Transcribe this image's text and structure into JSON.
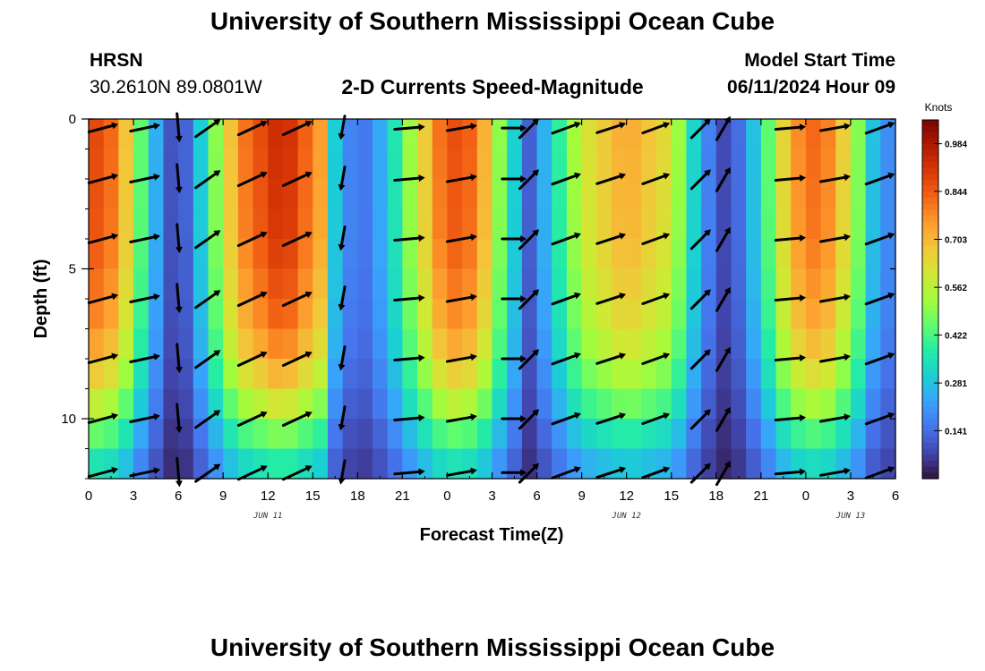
{
  "page": {
    "title_top": "University of Southern Mississippi Ocean Cube",
    "title_bottom": "University of Southern Mississippi Ocean Cube",
    "station": "HRSN",
    "coords": "30.2610N  89.0801W",
    "subtitle": "2-D Currents Speed-Magnitude",
    "model_start_label": "Model Start Time",
    "model_start_value": "06/11/2024 Hour 09"
  },
  "colors": {
    "arrow": "#000000",
    "frame": "#000000",
    "scale": [
      "#30123b",
      "#4145ab",
      "#4675ed",
      "#39a2fc",
      "#1bcfd4",
      "#24eca6",
      "#61fc6c",
      "#a4fc3b",
      "#d1e834",
      "#f3c63a",
      "#fe9b2d",
      "#f36315",
      "#d93806",
      "#b11901",
      "#7a0402"
    ]
  },
  "chart_data": {
    "type": "heatmap",
    "title": "2-D Currents Speed-Magnitude",
    "xlabel": "Forecast Time(Z)",
    "ylabel": "Depth (ft)",
    "colorbar_label": "Knots",
    "colorbar_ticks": [
      "0.141",
      "0.281",
      "0.422",
      "0.562",
      "0.703",
      "0.844",
      "0.984"
    ],
    "colorbar_range": [
      0.0,
      1.054
    ],
    "x_range_hours": [
      0,
      54
    ],
    "y_range_ft": [
      0,
      12
    ],
    "x_tick_hours": [
      0,
      3,
      6,
      9,
      12,
      15,
      18,
      21,
      24,
      27,
      30,
      33,
      36,
      39,
      42,
      45,
      48,
      51,
      54
    ],
    "x_tick_labels": [
      "0",
      "3",
      "6",
      "9",
      "12",
      "15",
      "18",
      "21",
      "0",
      "3",
      "6",
      "9",
      "12",
      "15",
      "18",
      "21",
      "0",
      "3",
      "6"
    ],
    "y_tick_values": [
      0,
      5,
      10
    ],
    "y_tick_labels": [
      "0",
      "5",
      "10"
    ],
    "date_labels": [
      {
        "text": "JUN 11",
        "hour": 12
      },
      {
        "text": "JUN 12",
        "hour": 36
      },
      {
        "text": "JUN 13",
        "hour": 51
      }
    ],
    "surface_speed_profile_knots": [
      {
        "hour": 0,
        "speed": 0.9
      },
      {
        "hour": 2,
        "speed": 0.8
      },
      {
        "hour": 3.5,
        "speed": 0.45
      },
      {
        "hour": 5,
        "speed": 0.15
      },
      {
        "hour": 6,
        "speed": 0.05
      },
      {
        "hour": 7,
        "speed": 0.2
      },
      {
        "hour": 8.5,
        "speed": 0.5
      },
      {
        "hour": 10,
        "speed": 0.78
      },
      {
        "hour": 13,
        "speed": 0.96
      },
      {
        "hour": 15.5,
        "speed": 0.75
      },
      {
        "hour": 16.5,
        "speed": 0.3
      },
      {
        "hour": 18,
        "speed": 0.12
      },
      {
        "hour": 20,
        "speed": 0.28
      },
      {
        "hour": 22,
        "speed": 0.6
      },
      {
        "hour": 24,
        "speed": 0.88
      },
      {
        "hour": 26,
        "speed": 0.82
      },
      {
        "hour": 28,
        "speed": 0.4
      },
      {
        "hour": 29.5,
        "speed": 0.12
      },
      {
        "hour": 31,
        "speed": 0.32
      },
      {
        "hour": 33,
        "speed": 0.6
      },
      {
        "hour": 36,
        "speed": 0.74
      },
      {
        "hour": 39,
        "speed": 0.62
      },
      {
        "hour": 40.5,
        "speed": 0.32
      },
      {
        "hour": 42,
        "speed": 0.1
      },
      {
        "hour": 43,
        "speed": 0.07
      },
      {
        "hour": 45,
        "speed": 0.35
      },
      {
        "hour": 47,
        "speed": 0.75
      },
      {
        "hour": 49,
        "speed": 0.85
      },
      {
        "hour": 51,
        "speed": 0.6
      },
      {
        "hour": 52.5,
        "speed": 0.28
      },
      {
        "hour": 54,
        "speed": 0.15
      }
    ],
    "depth_attenuation": [
      {
        "depth": 0,
        "factor": 1.0
      },
      {
        "depth": 4,
        "factor": 0.97
      },
      {
        "depth": 7,
        "factor": 0.88
      },
      {
        "depth": 9,
        "factor": 0.72
      },
      {
        "depth": 10.5,
        "factor": 0.52
      },
      {
        "depth": 12,
        "factor": 0.35
      }
    ],
    "arrow_columns": [
      {
        "hour": 1,
        "dir_deg": 15,
        "len": 1.0
      },
      {
        "hour": 3.8,
        "dir_deg": 12,
        "len": 1.0
      },
      {
        "hour": 6,
        "dir_deg": -85,
        "len": 0.95
      },
      {
        "hour": 8,
        "dir_deg": 35,
        "len": 1.0
      },
      {
        "hour": 11,
        "dir_deg": 25,
        "len": 1.05
      },
      {
        "hour": 14,
        "dir_deg": 25,
        "len": 1.05
      },
      {
        "hour": 17,
        "dir_deg": -100,
        "len": 0.8
      },
      {
        "hour": 21.5,
        "dir_deg": 5,
        "len": 1.0
      },
      {
        "hour": 25,
        "dir_deg": 10,
        "len": 1.0
      },
      {
        "hour": 28.5,
        "dir_deg": 0,
        "len": 0.8
      },
      {
        "hour": 29.5,
        "dir_deg": 45,
        "len": 0.9
      },
      {
        "hour": 32,
        "dir_deg": 20,
        "len": 1.0
      },
      {
        "hour": 35,
        "dir_deg": 18,
        "len": 1.0
      },
      {
        "hour": 38,
        "dir_deg": 20,
        "len": 0.95
      },
      {
        "hour": 41,
        "dir_deg": 45,
        "len": 0.9
      },
      {
        "hour": 42.5,
        "dir_deg": 60,
        "len": 0.9
      },
      {
        "hour": 47,
        "dir_deg": 5,
        "len": 1.0
      },
      {
        "hour": 50,
        "dir_deg": 10,
        "len": 1.0
      },
      {
        "hour": 53,
        "dir_deg": 20,
        "len": 1.0
      }
    ],
    "arrow_row_depths_ft": [
      0.3,
      2,
      4,
      6,
      8,
      10,
      11.8
    ]
  }
}
